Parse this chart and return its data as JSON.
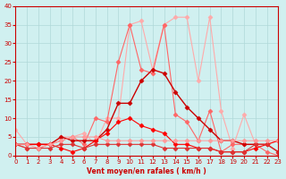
{
  "x": [
    0,
    1,
    2,
    3,
    4,
    5,
    6,
    7,
    8,
    9,
    10,
    11,
    12,
    13,
    14,
    15,
    16,
    17,
    18,
    19,
    20,
    21,
    22,
    23
  ],
  "line1": [
    7,
    3,
    3,
    3,
    5,
    5,
    6,
    3,
    10,
    10,
    35,
    36,
    23,
    35,
    37,
    37,
    20,
    37,
    12,
    2,
    11,
    3,
    3,
    4
  ],
  "line2": [
    3,
    2,
    2,
    3,
    4,
    5,
    3,
    10,
    9,
    25,
    35,
    23,
    22,
    35,
    11,
    9,
    4,
    12,
    1,
    3,
    3,
    3,
    1,
    0
  ],
  "line3": [
    3,
    3,
    3,
    3,
    5,
    4,
    4,
    4,
    7,
    14,
    14,
    20,
    23,
    22,
    17,
    13,
    10,
    7,
    4,
    4,
    3,
    3,
    3,
    1
  ],
  "line4": [
    3,
    3,
    3,
    3,
    2,
    1,
    2,
    4,
    6,
    9,
    10,
    8,
    7,
    6,
    3,
    3,
    2,
    2,
    1,
    1,
    1,
    2,
    3,
    4
  ],
  "line5": [
    3,
    2,
    2,
    2,
    3,
    3,
    2,
    3,
    3,
    3,
    3,
    3,
    3,
    2,
    2,
    2,
    2,
    2,
    1,
    1,
    1,
    3,
    3,
    1
  ],
  "line6": [
    3,
    3,
    2,
    3,
    4,
    5,
    5,
    5,
    4,
    4,
    4,
    4,
    4,
    4,
    4,
    4,
    4,
    4,
    4,
    4,
    4,
    4,
    4,
    4
  ],
  "colors": [
    "#ff9999",
    "#ff6666",
    "#cc0000",
    "#ff0000",
    "#dd4444",
    "#ffaaaa"
  ],
  "bg_color": "#d0f0f0",
  "grid_color": "#b0d8d8",
  "xlabel": "Vent moyen/en rafales ( km/h )",
  "ylim": [
    0,
    40
  ],
  "xlim": [
    0,
    23
  ],
  "yticks": [
    0,
    5,
    10,
    15,
    20,
    25,
    30,
    35,
    40
  ],
  "xticks": [
    0,
    1,
    2,
    3,
    4,
    5,
    6,
    7,
    8,
    9,
    10,
    11,
    12,
    13,
    14,
    15,
    16,
    17,
    18,
    19,
    20,
    21,
    22,
    23
  ]
}
